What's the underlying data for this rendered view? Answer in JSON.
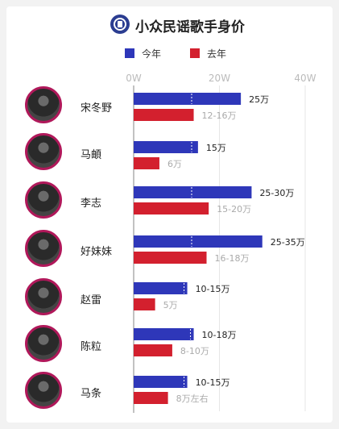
{
  "header": {
    "title": "小众民谣歌手身价"
  },
  "colors": {
    "this_year": "#2e37b9",
    "last_year": "#d3202e",
    "text_this_year": "#222222",
    "text_last_year": "#aaaaaa",
    "axis_text": "#bbbbbb"
  },
  "chart_data": {
    "type": "bar",
    "title": "小众民谣歌手身价",
    "legend_position": "top",
    "x_ticks": [
      "0W",
      "20W",
      "40W"
    ],
    "xlim": [
      0,
      40
    ],
    "unit": "W",
    "categories": [
      "宋冬野",
      "马頔",
      "李志",
      "好妹妹",
      "赵雷",
      "陈粒",
      "马条"
    ],
    "series": [
      {
        "name": "今年",
        "color": "#2e37b9",
        "values": [
          25,
          15,
          27.5,
          30,
          12.5,
          14,
          12.5
        ],
        "labels": [
          "25万",
          "15万",
          "25-30万",
          "25-35万",
          "10-15万",
          "10-18万",
          "10-15万"
        ]
      },
      {
        "name": "去年",
        "color": "#d3202e",
        "values": [
          14,
          6,
          17.5,
          17,
          5,
          9,
          8
        ],
        "labels": [
          "12-16万",
          "6万",
          "15-20万",
          "16-18万",
          "5万",
          "8-10万",
          "8万左右"
        ]
      }
    ]
  }
}
